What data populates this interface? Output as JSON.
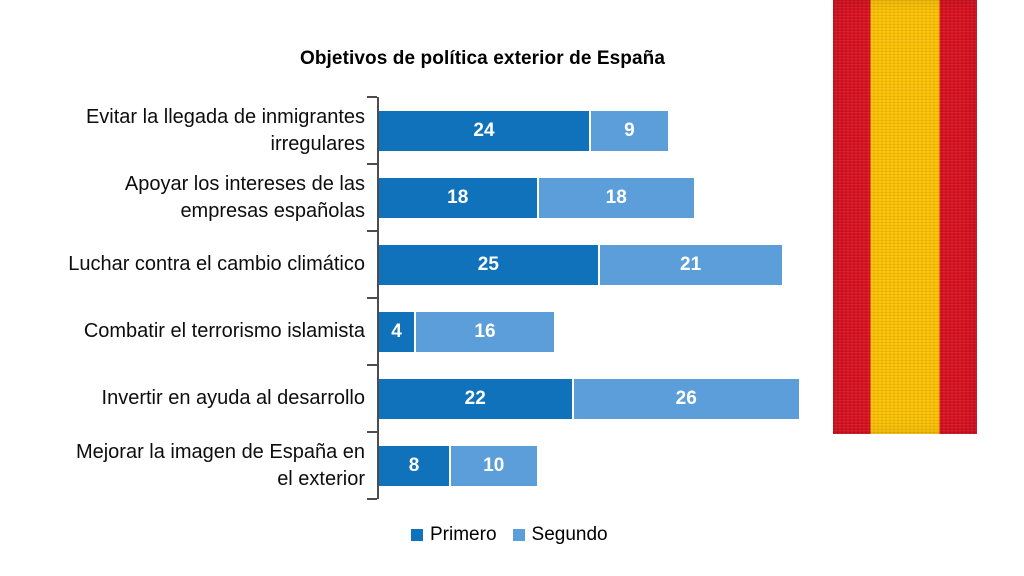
{
  "chart_data": {
    "type": "bar",
    "orientation": "horizontal",
    "stacked": true,
    "title": "Objetivos de política exterior de España",
    "categories": [
      "Evitar la llegada de inmigrantes irregulares",
      "Apoyar los intereses de las empresas españolas",
      "Luchar contra el cambio climático",
      "Combatir el terrorismo islamista",
      "Invertir en ayuda al desarrollo",
      "Mejorar la imagen de España en el exterior"
    ],
    "series": [
      {
        "name": "Primero",
        "color": "#0f72ba",
        "values": [
          24,
          18,
          25,
          4,
          22,
          8
        ]
      },
      {
        "name": "Segundo",
        "color": "#5b9ed9",
        "values": [
          9,
          18,
          21,
          16,
          26,
          10
        ]
      }
    ],
    "value_labels": true,
    "xlim": [
      0,
      48
    ],
    "grid": false,
    "legend_position": "bottom",
    "axis_color": "#4d4d4d"
  },
  "legend": {
    "items": [
      {
        "label": "Primero",
        "color": "#0f72ba"
      },
      {
        "label": "Segundo",
        "color": "#5b9ed9"
      }
    ]
  },
  "flag": {
    "name": "spain-flag-ribbon",
    "red": "#d9101f",
    "yellow": "#fcc103"
  }
}
